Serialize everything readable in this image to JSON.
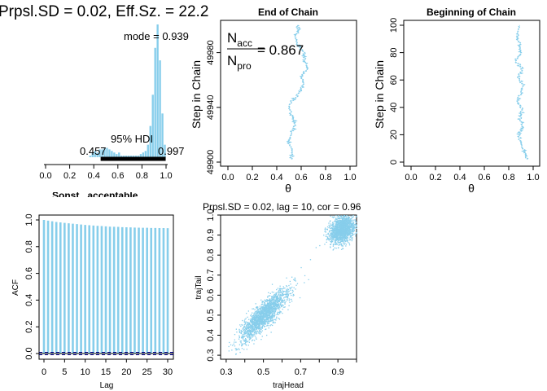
{
  "colors": {
    "series": "#87ceeb",
    "hdi": "#000000",
    "acf_ref": "#00008b",
    "axis": "#000000"
  },
  "chart_data": [
    {
      "id": "posterior",
      "type": "histogram",
      "title": "Prpsl.SD = 0.02, Eff.Sz. = 22.2",
      "xlabel": "",
      "xticks": [
        "0.0",
        "0.2",
        "0.4",
        "0.6",
        "0.8",
        "1.0"
      ],
      "xlim": [
        0,
        1
      ],
      "bins": [
        0.36,
        0.38,
        0.4,
        0.42,
        0.44,
        0.46,
        0.48,
        0.5,
        0.52,
        0.54,
        0.56,
        0.58,
        0.6,
        0.62,
        0.64,
        0.66,
        0.68,
        0.7,
        0.72,
        0.74,
        0.76,
        0.78,
        0.8,
        0.82,
        0.84,
        0.86,
        0.88,
        0.9,
        0.92,
        0.94,
        0.96,
        0.98
      ],
      "counts": [
        1,
        3,
        4,
        3,
        5,
        5,
        6,
        6,
        5,
        4,
        3,
        2,
        3,
        1,
        1,
        1,
        1,
        1,
        1,
        1,
        1,
        2,
        3,
        4,
        8,
        20,
        40,
        70,
        85,
        62,
        28,
        8
      ],
      "mode_label": "mode",
      "mode_value": "0.939",
      "hdi_label": "95% HDI",
      "hdi_low": "0.457",
      "hdi_high": "0.997",
      "hdi": [
        0.457,
        0.997
      ]
    },
    {
      "id": "end-of-chain",
      "type": "line",
      "title": "End of Chain",
      "xlabel": "θ",
      "ylabel": "Step in Chain",
      "xticks": [
        "0.0",
        "0.2",
        "0.4",
        "0.6",
        "0.8",
        "1.0"
      ],
      "yticks": [
        "49900",
        "49940",
        "49980"
      ],
      "xlim": [
        0,
        1
      ],
      "ylim": [
        49900,
        50000
      ],
      "accept_ratio": "0.867",
      "frac_num": "N",
      "frac_num_sub": "acc",
      "frac_den": "N",
      "frac_den_sub": "pro",
      "trace_points": [
        [
          0.52,
          49902
        ],
        [
          0.53,
          49908
        ],
        [
          0.5,
          49914
        ],
        [
          0.51,
          49920
        ],
        [
          0.55,
          49926
        ],
        [
          0.54,
          49932
        ],
        [
          0.5,
          49938
        ],
        [
          0.52,
          49944
        ],
        [
          0.58,
          49950
        ],
        [
          0.62,
          49956
        ],
        [
          0.6,
          49962
        ],
        [
          0.65,
          49968
        ],
        [
          0.63,
          49974
        ],
        [
          0.62,
          49980
        ],
        [
          0.57,
          49986
        ],
        [
          0.55,
          49992
        ],
        [
          0.58,
          49996
        ],
        [
          0.57,
          50000
        ]
      ]
    },
    {
      "id": "beginning-of-chain",
      "type": "line",
      "title": "Beginning of Chain",
      "xlabel": "θ",
      "ylabel": "Step in Chain",
      "xticks": [
        "0.0",
        "0.2",
        "0.4",
        "0.6",
        "0.8",
        "1.0"
      ],
      "yticks": [
        "0",
        "20",
        "40",
        "60",
        "80",
        "100"
      ],
      "xlim": [
        0,
        1
      ],
      "ylim": [
        0,
        100
      ],
      "trace_points": [
        [
          0.95,
          2
        ],
        [
          0.93,
          8
        ],
        [
          0.9,
          14
        ],
        [
          0.88,
          20
        ],
        [
          0.92,
          26
        ],
        [
          0.89,
          32
        ],
        [
          0.91,
          38
        ],
        [
          0.87,
          44
        ],
        [
          0.9,
          50
        ],
        [
          0.92,
          56
        ],
        [
          0.88,
          62
        ],
        [
          0.91,
          68
        ],
        [
          0.86,
          74
        ],
        [
          0.9,
          80
        ],
        [
          0.89,
          86
        ],
        [
          0.87,
          92
        ],
        [
          0.89,
          100
        ]
      ]
    },
    {
      "id": "acf",
      "type": "bar",
      "title": "",
      "xlabel": "Lag",
      "ylabel": "ACF",
      "xticks": [
        "0",
        "5",
        "10",
        "15",
        "20",
        "25",
        "30"
      ],
      "yticks": [
        "0.0",
        "0.2",
        "0.4",
        "0.6",
        "0.8",
        "1.0"
      ],
      "xlim": [
        0,
        30
      ],
      "ylim": [
        0,
        1
      ],
      "lags": [
        0,
        1,
        2,
        3,
        4,
        5,
        6,
        7,
        8,
        9,
        10,
        11,
        12,
        13,
        14,
        15,
        16,
        17,
        18,
        19,
        20,
        21,
        22,
        23,
        24,
        25,
        26,
        27,
        28,
        29,
        30
      ],
      "values": [
        1.0,
        0.995,
        0.99,
        0.985,
        0.982,
        0.978,
        0.975,
        0.972,
        0.969,
        0.966,
        0.963,
        0.96,
        0.958,
        0.956,
        0.954,
        0.952,
        0.95,
        0.949,
        0.948,
        0.946,
        0.945,
        0.944,
        0.943,
        0.942,
        0.941,
        0.941,
        0.94,
        0.94,
        0.939,
        0.939,
        0.938
      ],
      "ci": 0.009,
      "partial_label": "Sonst_ acceptable"
    },
    {
      "id": "lag-scatter",
      "type": "scatter",
      "title": "Prpsl.SD = 0.02, lag = 10, cor = 0.96",
      "xlabel": "trajHead",
      "ylabel": "trajTail",
      "xticks": [
        "0.3",
        "0.5",
        "0.7",
        "0.9"
      ],
      "yticks": [
        "0.3",
        "0.4",
        "0.5",
        "0.6",
        "0.7",
        "0.8",
        "0.9",
        "1.0"
      ],
      "xlim": [
        0.27,
        1.0
      ],
      "ylim": [
        0.28,
        1.0
      ],
      "clusters": [
        {
          "cx": 0.5,
          "cy": 0.5,
          "sx": 0.065,
          "sy": 0.065,
          "rho": 0.85,
          "count": 1700,
          "xmin": 0.3,
          "xmax": 0.72,
          "ymin": 0.3,
          "ymax": 0.7
        },
        {
          "cx": 0.92,
          "cy": 0.93,
          "sx": 0.035,
          "sy": 0.035,
          "rho": 0.3,
          "count": 1500,
          "xmin": 0.82,
          "xmax": 1.0,
          "ymin": 0.82,
          "ymax": 1.0
        }
      ],
      "transition": [
        [
          0.75,
          0.78
        ],
        [
          0.72,
          0.7
        ],
        [
          0.78,
          0.84
        ],
        [
          0.7,
          0.74
        ],
        [
          0.74,
          0.68
        ],
        [
          0.8,
          0.85
        ],
        [
          0.68,
          0.66
        ],
        [
          0.66,
          0.68
        ]
      ]
    }
  ]
}
